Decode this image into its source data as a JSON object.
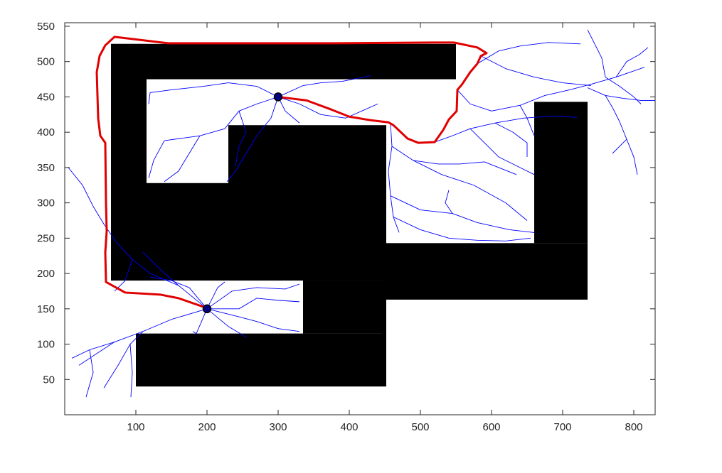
{
  "chart_data": {
    "type": "scatter",
    "title": "",
    "xlabel": "",
    "ylabel": "",
    "xlim": [
      0,
      830
    ],
    "ylim": [
      0,
      555
    ],
    "x_ticks": [
      "100",
      "200",
      "300",
      "400",
      "500",
      "600",
      "700",
      "800"
    ],
    "y_ticks": [
      "50",
      "100",
      "150",
      "200",
      "250",
      "300",
      "350",
      "400",
      "450",
      "500",
      "550"
    ],
    "grid": false,
    "legend": "none",
    "colors": {
      "tree": "#0000ff",
      "path": "#e00000",
      "obstacle": "#000000",
      "node": "#000080",
      "axis": "#262626"
    },
    "obstacles": [
      {
        "x": [
          65,
          550
        ],
        "y": [
          475,
          525
        ]
      },
      {
        "x": [
          65,
          115
        ],
        "y": [
          190,
          525
        ]
      },
      {
        "x": [
          65,
          230
        ],
        "y": [
          190,
          328
        ]
      },
      {
        "x": [
          230,
          452
        ],
        "y": [
          190,
          410
        ]
      },
      {
        "x": [
          335,
          452
        ],
        "y": [
          115,
          190
        ]
      },
      {
        "x": [
          452,
          735
        ],
        "y": [
          163,
          243
        ]
      },
      {
        "x": [
          660,
          735
        ],
        "y": [
          243,
          443
        ]
      },
      {
        "x": [
          100,
          445
        ],
        "y": [
          40,
          115
        ]
      },
      {
        "x": [
          445,
          452
        ],
        "y": [
          40,
          163
        ]
      }
    ],
    "start_point": {
      "x": 200,
      "y": 150
    },
    "goal_point": {
      "x": 300,
      "y": 450
    },
    "path": [
      [
        200,
        151
      ],
      [
        160,
        165
      ],
      [
        135,
        170
      ],
      [
        85,
        173
      ],
      [
        58,
        188
      ],
      [
        57,
        230
      ],
      [
        59,
        260
      ],
      [
        58,
        300
      ],
      [
        57,
        385
      ],
      [
        50,
        395
      ],
      [
        47,
        420
      ],
      [
        45,
        485
      ],
      [
        49,
        508
      ],
      [
        57,
        523
      ],
      [
        70,
        535
      ],
      [
        145,
        526
      ],
      [
        220,
        526
      ],
      [
        380,
        526
      ],
      [
        520,
        527
      ],
      [
        547,
        527
      ],
      [
        580,
        520
      ],
      [
        593,
        512
      ],
      [
        585,
        508
      ],
      [
        580,
        497
      ],
      [
        570,
        485
      ],
      [
        558,
        467
      ],
      [
        552,
        460
      ],
      [
        551,
        430
      ],
      [
        540,
        418
      ],
      [
        532,
        403
      ],
      [
        520,
        386
      ],
      [
        497,
        385
      ],
      [
        482,
        391
      ],
      [
        462,
        410
      ],
      [
        455,
        414
      ],
      [
        430,
        417
      ],
      [
        400,
        422
      ],
      [
        375,
        432
      ],
      [
        340,
        445
      ],
      [
        300,
        450
      ]
    ],
    "tree_branches": [
      [
        [
          200,
          150
        ],
        [
          160,
          183
        ],
        [
          120,
          200
        ],
        [
          95,
          220
        ],
        [
          72,
          245
        ],
        [
          55,
          270
        ],
        [
          40,
          295
        ],
        [
          25,
          325
        ],
        [
          5,
          350
        ]
      ],
      [
        [
          160,
          183
        ],
        [
          135,
          205
        ],
        [
          110,
          230
        ]
      ],
      [
        [
          95,
          220
        ],
        [
          85,
          190
        ],
        [
          70,
          175
        ]
      ],
      [
        [
          200,
          150
        ],
        [
          150,
          135
        ],
        [
          110,
          118
        ],
        [
          70,
          103
        ],
        [
          35,
          92
        ],
        [
          10,
          80
        ]
      ],
      [
        [
          110,
          118
        ],
        [
          92,
          100
        ],
        [
          75,
          70
        ],
        [
          55,
          38
        ]
      ],
      [
        [
          70,
          103
        ],
        [
          50,
          90
        ],
        [
          20,
          70
        ]
      ],
      [
        [
          35,
          92
        ],
        [
          40,
          60
        ],
        [
          30,
          25
        ]
      ],
      [
        [
          92,
          100
        ],
        [
          95,
          60
        ],
        [
          93,
          25
        ]
      ],
      [
        [
          200,
          150
        ],
        [
          230,
          125
        ],
        [
          255,
          110
        ]
      ],
      [
        [
          200,
          150
        ],
        [
          245,
          150
        ],
        [
          270,
          165
        ],
        [
          300,
          162
        ],
        [
          330,
          160
        ]
      ],
      [
        [
          200,
          150
        ],
        [
          235,
          175
        ],
        [
          270,
          180
        ],
        [
          310,
          178
        ],
        [
          330,
          185
        ]
      ],
      [
        [
          200,
          150
        ],
        [
          175,
          180
        ],
        [
          150,
          190
        ],
        [
          120,
          195
        ]
      ],
      [
        [
          200,
          150
        ],
        [
          215,
          180
        ],
        [
          225,
          188
        ]
      ],
      [
        [
          200,
          150
        ],
        [
          185,
          115
        ],
        [
          180,
          118
        ]
      ],
      [
        [
          200,
          150
        ],
        [
          240,
          140
        ],
        [
          270,
          132
        ],
        [
          300,
          122
        ],
        [
          330,
          118
        ]
      ],
      [
        [
          300,
          450
        ],
        [
          270,
          465
        ],
        [
          230,
          470
        ],
        [
          195,
          465
        ],
        [
          150,
          460
        ],
        [
          120,
          456
        ]
      ],
      [
        [
          300,
          450
        ],
        [
          270,
          440
        ],
        [
          245,
          430
        ],
        [
          225,
          405
        ],
        [
          190,
          395
        ],
        [
          140,
          388
        ]
      ],
      [
        [
          300,
          450
        ],
        [
          290,
          420
        ],
        [
          270,
          395
        ],
        [
          255,
          370
        ],
        [
          240,
          345
        ],
        [
          228,
          330
        ]
      ],
      [
        [
          300,
          450
        ],
        [
          335,
          466
        ],
        [
          360,
          470
        ],
        [
          390,
          472
        ],
        [
          430,
          480
        ]
      ],
      [
        [
          300,
          450
        ],
        [
          330,
          440
        ],
        [
          360,
          425
        ],
        [
          395,
          420
        ],
        [
          440,
          440
        ]
      ],
      [
        [
          300,
          450
        ],
        [
          310,
          430
        ],
        [
          330,
          413
        ]
      ],
      [
        [
          245,
          430
        ],
        [
          255,
          400
        ],
        [
          245,
          380
        ],
        [
          240,
          352
        ]
      ],
      [
        [
          190,
          395
        ],
        [
          175,
          370
        ],
        [
          160,
          345
        ],
        [
          140,
          330
        ]
      ],
      [
        [
          140,
          388
        ],
        [
          125,
          360
        ],
        [
          118,
          335
        ]
      ],
      [
        [
          120,
          456
        ],
        [
          118,
          440
        ]
      ],
      [
        [
          458,
          412
        ],
        [
          460,
          380
        ],
        [
          455,
          345
        ],
        [
          458,
          310
        ],
        [
          462,
          280
        ],
        [
          470,
          258
        ]
      ],
      [
        [
          460,
          380
        ],
        [
          490,
          360
        ],
        [
          530,
          340
        ],
        [
          575,
          325
        ],
        [
          620,
          300
        ],
        [
          650,
          275
        ]
      ],
      [
        [
          490,
          360
        ],
        [
          525,
          355
        ],
        [
          555,
          355
        ],
        [
          590,
          358
        ],
        [
          635,
          340
        ]
      ],
      [
        [
          458,
          310
        ],
        [
          500,
          290
        ],
        [
          545,
          285
        ],
        [
          580,
          272
        ],
        [
          625,
          262
        ],
        [
          660,
          258
        ]
      ],
      [
        [
          462,
          280
        ],
        [
          500,
          262
        ],
        [
          540,
          250
        ],
        [
          580,
          247
        ],
        [
          620,
          246
        ],
        [
          655,
          250
        ]
      ],
      [
        [
          545,
          285
        ],
        [
          535,
          300
        ],
        [
          540,
          318
        ]
      ],
      [
        [
          520,
          386
        ],
        [
          545,
          395
        ],
        [
          570,
          405
        ],
        [
          605,
          413
        ],
        [
          645,
          420
        ],
        [
          690,
          423
        ],
        [
          720,
          421
        ]
      ],
      [
        [
          605,
          413
        ],
        [
          630,
          400
        ],
        [
          650,
          385
        ],
        [
          650,
          365
        ]
      ],
      [
        [
          570,
          405
        ],
        [
          590,
          385
        ],
        [
          610,
          365
        ],
        [
          640,
          350
        ],
        [
          660,
          340
        ]
      ],
      [
        [
          580,
          497
        ],
        [
          610,
          515
        ],
        [
          640,
          522
        ],
        [
          680,
          527
        ],
        [
          725,
          525
        ]
      ],
      [
        [
          585,
          508
        ],
        [
          620,
          490
        ],
        [
          660,
          478
        ],
        [
          700,
          470
        ],
        [
          740,
          466
        ]
      ],
      [
        [
          552,
          460
        ],
        [
          570,
          440
        ],
        [
          600,
          430
        ],
        [
          640,
          438
        ],
        [
          675,
          452
        ],
        [
          710,
          460
        ],
        [
          740,
          468
        ],
        [
          775,
          478
        ],
        [
          815,
          492
        ]
      ],
      [
        [
          640,
          438
        ],
        [
          650,
          420
        ],
        [
          660,
          395
        ]
      ],
      [
        [
          775,
          478
        ],
        [
          790,
          500
        ],
        [
          808,
          510
        ],
        [
          820,
          520
        ]
      ],
      [
        [
          760,
          478
        ],
        [
          755,
          505
        ],
        [
          745,
          525
        ],
        [
          735,
          545
        ]
      ],
      [
        [
          760,
          478
        ],
        [
          780,
          465
        ],
        [
          800,
          450
        ],
        [
          810,
          440
        ]
      ],
      [
        [
          735,
          463
        ],
        [
          760,
          452
        ],
        [
          785,
          448
        ],
        [
          810,
          445
        ],
        [
          830,
          445
        ]
      ],
      [
        [
          760,
          452
        ],
        [
          770,
          435
        ],
        [
          780,
          415
        ],
        [
          790,
          390
        ],
        [
          800,
          365
        ],
        [
          805,
          340
        ]
      ],
      [
        [
          790,
          390
        ],
        [
          780,
          380
        ],
        [
          770,
          370
        ]
      ]
    ]
  }
}
